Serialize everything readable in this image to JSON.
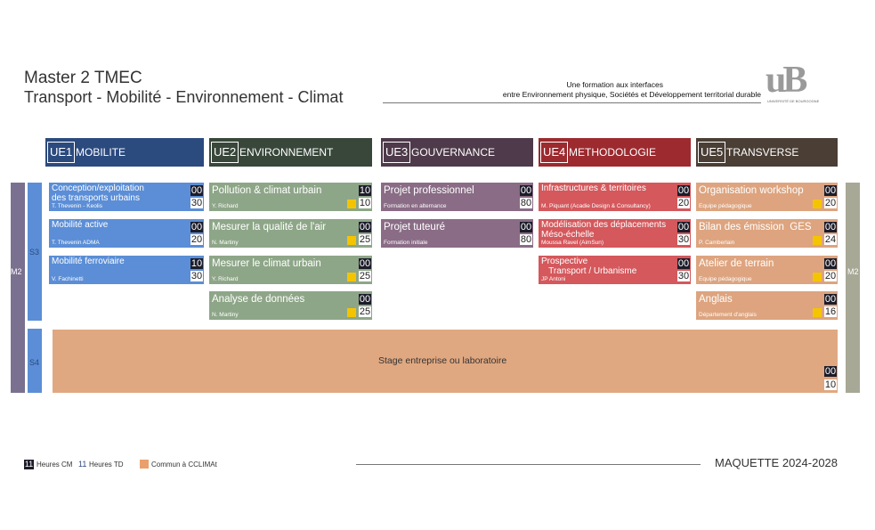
{
  "header": {
    "title": "Master 2 TMEC",
    "subtitle": "Transport - Mobilité - Environnement - Climat",
    "tagline": [
      "Une formation aux interfaces",
      "entre Environnement physique, Sociétés et Développement territorial durable"
    ],
    "logo": "uB",
    "logo_caption": "UNIVERSITÉ DE BOURGOGNE"
  },
  "levels": {
    "left": "M2",
    "right": "M2",
    "s3": "S3",
    "s4": "S4"
  },
  "ues": [
    {
      "code": "UE1",
      "name": "MOBILITE",
      "header_color": "#2b4a7e",
      "card_color": "#5b8ed6",
      "courses": [
        {
          "title": "Conception/exploitation\ndes transports urbains",
          "teacher": "T. Thevenin - Keolis",
          "cm": "00",
          "td": "30",
          "marked": false
        },
        {
          "title": "Mobilité active",
          "teacher": "T. Thevenin ADMA",
          "cm": "00",
          "td": "20",
          "marked": false
        },
        {
          "title": "Mobilité ferroviaire",
          "teacher": "V. Fachinetti",
          "cm": "10",
          "td": "30",
          "marked": false
        }
      ]
    },
    {
      "code": "UE2",
      "name": "ENVIRONNEMENT",
      "header_color": "#38473a",
      "card_color": "#8ea688",
      "courses": [
        {
          "title": "Pollution & climat urbain",
          "teacher": "Y. Richard",
          "cm": "10",
          "td": "10",
          "marked": true
        },
        {
          "title": "Mesurer la qualité de l'air",
          "teacher": "N. Martiny",
          "cm": "00",
          "td": "25",
          "marked": true
        },
        {
          "title": "Mesurer le climat urbain",
          "teacher": "Y. Richard",
          "cm": "00",
          "td": "25",
          "marked": true
        },
        {
          "title": "Analyse de données",
          "teacher": "N. Martiny",
          "cm": "00",
          "td": "25",
          "marked": true
        }
      ]
    },
    {
      "code": "UE3",
      "name": "GOUVERNANCE",
      "header_color": "#4e3a4a",
      "card_color": "#8a6c86",
      "courses": [
        {
          "title": "Projet professionnel",
          "teacher": "Formation en alternance",
          "cm": "00",
          "td": "80",
          "marked": false
        },
        {
          "title": "Projet tuteuré",
          "teacher": "Formation initiale",
          "cm": "00",
          "td": "80",
          "marked": false
        }
      ]
    },
    {
      "code": "UE4",
      "name": "METHODOLOGIE",
      "header_color": "#9c2a2f",
      "card_color": "#d4585c",
      "courses": [
        {
          "title": "Infrastructures & territoires",
          "teacher": "M. Piquant (Acadie Design & Consultancy)",
          "cm": "00",
          "td": "20",
          "marked": false
        },
        {
          "title": "Modélisation des déplacements\nMéso-échelle",
          "teacher": "Moussa Ravel (AimSun)",
          "cm": "00",
          "td": "30",
          "marked": false
        },
        {
          "title": "Prospective\n   Transport / Urbanisme",
          "teacher": "JP Antoni",
          "cm": "00",
          "td": "30",
          "marked": false
        }
      ]
    },
    {
      "code": "UE5",
      "name": "TRANSVERSE",
      "header_color": "#4a3e35",
      "card_color": "#dda47f",
      "courses": [
        {
          "title": "Organisation workshop",
          "teacher": "Equipe pédagogique",
          "cm": "00",
          "td": "20",
          "marked": true
        },
        {
          "title": "Bilan des émission  GES",
          "teacher": "P. Camberlain",
          "cm": "00",
          "td": "24",
          "marked": true
        },
        {
          "title": "Atelier de terrain",
          "teacher": "Equipe pédagogique",
          "cm": "00",
          "td": "20",
          "marked": true
        },
        {
          "title": "Anglais",
          "teacher": "Département d'anglais",
          "cm": "00",
          "td": "16",
          "marked": true
        }
      ]
    }
  ],
  "stage": {
    "title": "Stage entreprise ou laboratoire",
    "cm": "00",
    "td": "10",
    "color": "#e0a881"
  },
  "legend": {
    "cm_sample": "11",
    "cm_label": "Heures CM",
    "td_sample": "11",
    "td_label": "Heures TD",
    "common_label": "Commun à CCLIMAt",
    "common_color": "#e9a06c"
  },
  "footer": "MAQUETTE 2024-2028"
}
